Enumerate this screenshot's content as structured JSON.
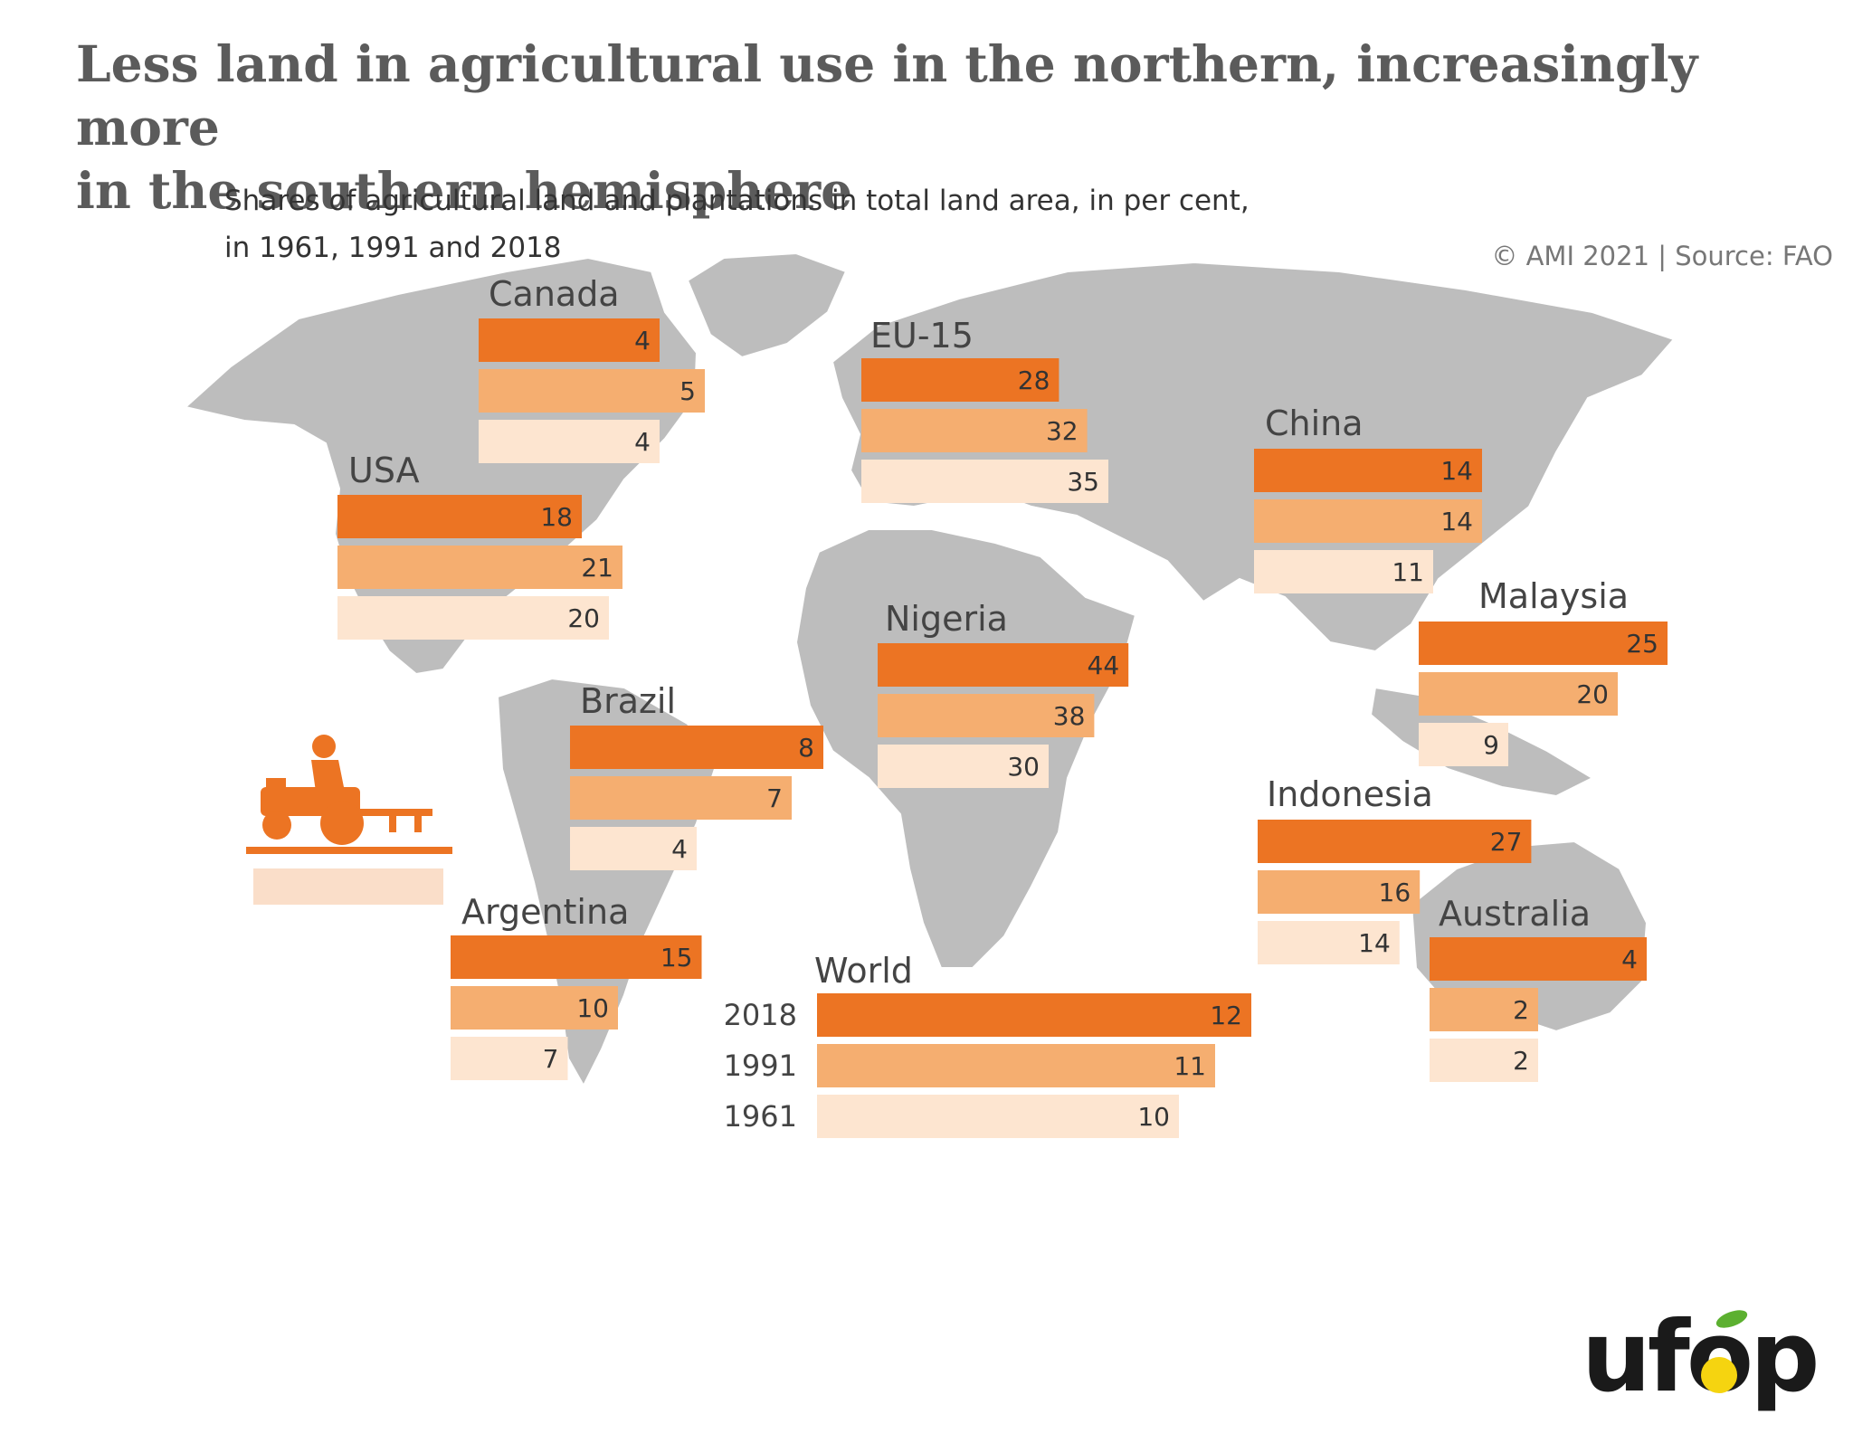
{
  "title": "Less land in agricultural use in the northern, increasingly more\nin the southern hemisphere",
  "subtitle": "Shares of agricultural land and plantations in total land area, in per cent,\nin 1961, 1991 and 2018",
  "source": "© AMI 2021 | Source: FAO",
  "logo_text": "ufop",
  "colors": {
    "y2018": "#ec7423",
    "y1991": "#f5ae70",
    "y1961": "#fde5d0",
    "map": "#bdbdbd",
    "accent": "#ec7423"
  },
  "icons": [
    "tractor-icon",
    "ufop-logo"
  ],
  "chart_data": {
    "type": "bar",
    "orientation": "horizontal",
    "years": [
      "2018",
      "1991",
      "1961"
    ],
    "groups": [
      {
        "name": "Canada",
        "values": [
          4,
          5,
          4
        ]
      },
      {
        "name": "EU-15",
        "values": [
          28,
          32,
          35
        ]
      },
      {
        "name": "China",
        "values": [
          14,
          14,
          11
        ]
      },
      {
        "name": "USA",
        "values": [
          18,
          21,
          20
        ]
      },
      {
        "name": "Malaysia",
        "values": [
          25,
          20,
          9
        ]
      },
      {
        "name": "Nigeria",
        "values": [
          44,
          38,
          30
        ]
      },
      {
        "name": "Brazil",
        "values": [
          8,
          7,
          4
        ]
      },
      {
        "name": "Indonesia",
        "values": [
          27,
          16,
          14
        ]
      },
      {
        "name": "Argentina",
        "values": [
          15,
          10,
          7
        ]
      },
      {
        "name": "Australia",
        "values": [
          4,
          2,
          2
        ]
      },
      {
        "name": "World",
        "values": [
          12,
          11,
          10
        ]
      }
    ],
    "year_labels_group": "World"
  }
}
